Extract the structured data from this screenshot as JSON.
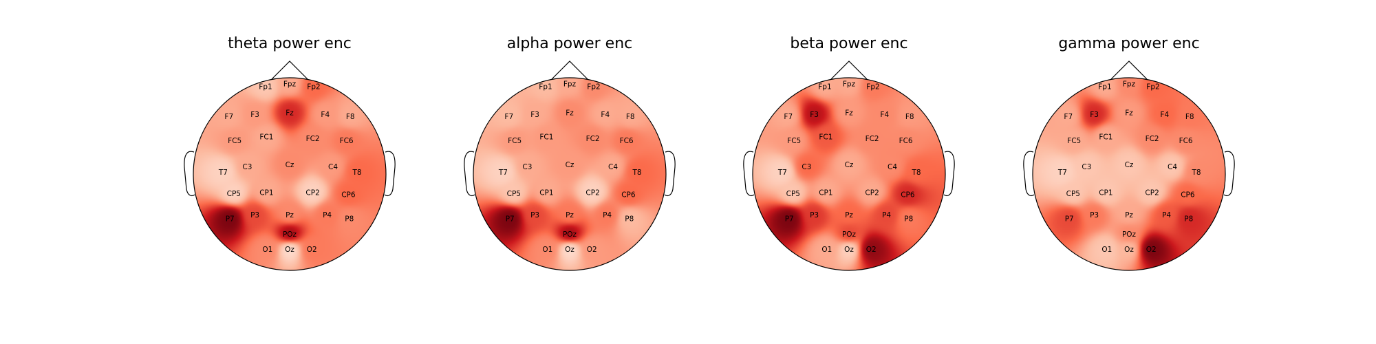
{
  "figure": {
    "colormap": "Reds",
    "colormap_stops": [
      "#fff5f0",
      "#fcbba1",
      "#fb6a4a",
      "#cb181d",
      "#67000d"
    ]
  },
  "chart_data": [
    {
      "type": "heatmap",
      "subtype": "eeg-topomap",
      "title": "theta power enc",
      "channels": [
        "Fp1",
        "Fpz",
        "Fp2",
        "F7",
        "F3",
        "Fz",
        "F4",
        "F8",
        "FC5",
        "FC1",
        "FC2",
        "FC6",
        "T7",
        "C3",
        "Cz",
        "C4",
        "T8",
        "CP5",
        "CP1",
        "CP2",
        "CP6",
        "P7",
        "P3",
        "Pz",
        "P4",
        "P8",
        "POz",
        "O1",
        "Oz",
        "O2"
      ],
      "values": [
        0.2,
        0.3,
        0.5,
        0.3,
        0.35,
        0.7,
        0.35,
        0.3,
        0.35,
        0.3,
        0.4,
        0.45,
        0.15,
        0.3,
        0.4,
        0.35,
        0.5,
        0.15,
        0.3,
        0.15,
        0.5,
        0.95,
        0.6,
        0.4,
        0.45,
        0.4,
        0.85,
        0.4,
        0.1,
        0.45
      ]
    },
    {
      "type": "heatmap",
      "subtype": "eeg-topomap",
      "title": "alpha power enc",
      "channels": [
        "Fp1",
        "Fpz",
        "Fp2",
        "F7",
        "F3",
        "Fz",
        "F4",
        "F8",
        "FC5",
        "FC1",
        "FC2",
        "FC6",
        "T7",
        "C3",
        "Cz",
        "C4",
        "T8",
        "CP5",
        "CP1",
        "CP2",
        "CP6",
        "P7",
        "P3",
        "Pz",
        "P4",
        "P8",
        "POz",
        "O1",
        "Oz",
        "O2"
      ],
      "values": [
        0.25,
        0.3,
        0.4,
        0.25,
        0.3,
        0.4,
        0.3,
        0.3,
        0.35,
        0.35,
        0.4,
        0.45,
        0.15,
        0.3,
        0.35,
        0.3,
        0.5,
        0.2,
        0.3,
        0.15,
        0.5,
        0.95,
        0.6,
        0.45,
        0.45,
        0.25,
        0.85,
        0.4,
        0.1,
        0.35
      ]
    },
    {
      "type": "heatmap",
      "subtype": "eeg-topomap",
      "title": "beta power enc",
      "channels": [
        "Fp1",
        "Fpz",
        "Fp2",
        "F7",
        "F3",
        "Fz",
        "F4",
        "F8",
        "FC5",
        "FC1",
        "FC2",
        "FC6",
        "T7",
        "C3",
        "Cz",
        "C4",
        "T8",
        "CP5",
        "CP1",
        "CP2",
        "CP6",
        "P7",
        "P3",
        "Pz",
        "P4",
        "P8",
        "POz",
        "O1",
        "Oz",
        "O2"
      ],
      "values": [
        0.3,
        0.3,
        0.45,
        0.3,
        0.8,
        0.35,
        0.4,
        0.35,
        0.35,
        0.55,
        0.4,
        0.4,
        0.15,
        0.5,
        0.3,
        0.4,
        0.5,
        0.2,
        0.3,
        0.3,
        0.7,
        0.95,
        0.65,
        0.5,
        0.6,
        0.45,
        0.6,
        0.3,
        0.15,
        0.9
      ]
    },
    {
      "type": "heatmap",
      "subtype": "eeg-topomap",
      "title": "gamma power enc",
      "channels": [
        "Fp1",
        "Fpz",
        "Fp2",
        "F7",
        "F3",
        "Fz",
        "F4",
        "F8",
        "FC5",
        "FC1",
        "FC2",
        "FC6",
        "T7",
        "C3",
        "Cz",
        "C4",
        "T8",
        "CP5",
        "CP1",
        "CP2",
        "CP6",
        "P7",
        "P3",
        "Pz",
        "P4",
        "P8",
        "POz",
        "O1",
        "Oz",
        "O2"
      ],
      "values": [
        0.3,
        0.4,
        0.5,
        0.3,
        0.7,
        0.35,
        0.5,
        0.45,
        0.3,
        0.3,
        0.4,
        0.4,
        0.15,
        0.2,
        0.2,
        0.2,
        0.4,
        0.2,
        0.2,
        0.2,
        0.5,
        0.6,
        0.45,
        0.3,
        0.55,
        0.7,
        0.4,
        0.2,
        0.25,
        0.95
      ]
    }
  ]
}
